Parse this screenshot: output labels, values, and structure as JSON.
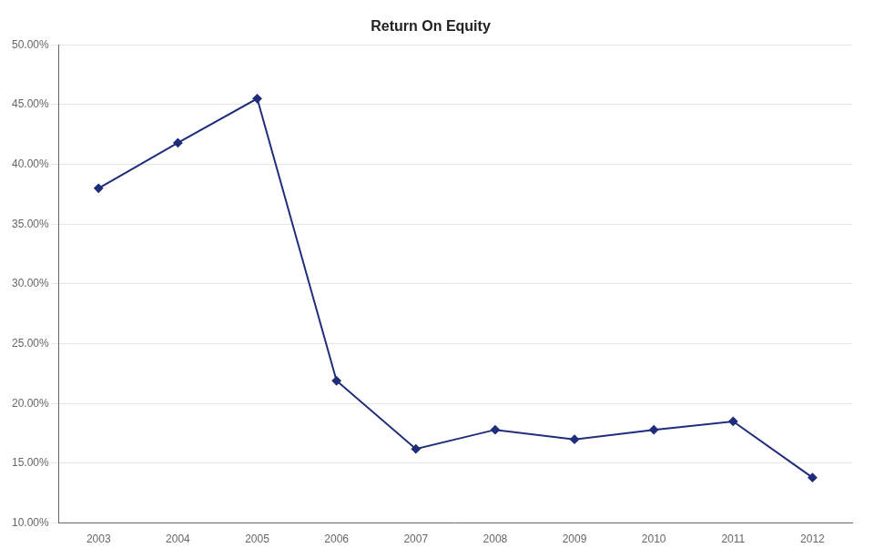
{
  "chart_data": {
    "type": "line",
    "title": "Return On Equity",
    "x": [
      2003,
      2004,
      2005,
      2006,
      2007,
      2008,
      2009,
      2010,
      2011,
      2012
    ],
    "values": [
      0.38,
      0.418,
      0.455,
      0.219,
      0.162,
      0.178,
      0.17,
      0.178,
      0.185,
      0.138
    ],
    "color": "#1F2D7B",
    "marker": "diamond",
    "xlim": [
      2002.5,
      2012.5
    ],
    "xticks": [
      2003,
      2004,
      2005,
      2006,
      2007,
      2008,
      2009,
      2010,
      2011,
      2012
    ],
    "ylim": [
      0.1,
      0.5
    ],
    "yticks": [
      {
        "value": 0.1,
        "label": "10.00%"
      },
      {
        "value": 0.15,
        "label": "15.00%"
      },
      {
        "value": 0.2,
        "label": "20.00%"
      },
      {
        "value": 0.25,
        "label": "25.00%"
      },
      {
        "value": 0.3,
        "label": "30.00%"
      },
      {
        "value": 0.35,
        "label": "35.00%"
      },
      {
        "value": 0.4,
        "label": "40.00%"
      },
      {
        "value": 0.45,
        "label": "45.00%"
      },
      {
        "value": 0.5,
        "label": "50.00%"
      }
    ],
    "grid": "y"
  }
}
